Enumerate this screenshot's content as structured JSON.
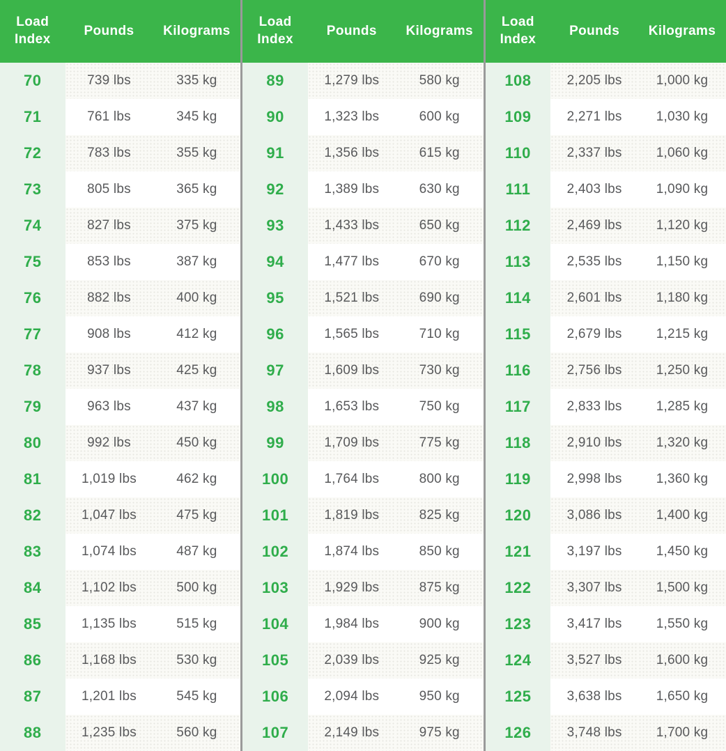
{
  "colors": {
    "header_bg": "#3bb54a",
    "header_text": "#ffffff",
    "index_text_green": "#2fad4b",
    "index_column_bg": "#e9f3eb",
    "stripe_row_bg": "#fafaf6",
    "plain_row_bg": "#ffffff",
    "group_divider": "#9a9a9a",
    "data_text": "#58595b"
  },
  "chart_data": {
    "type": "table",
    "columns": [
      "Load Index",
      "Pounds",
      "Kilograms"
    ],
    "groups": [
      {
        "rows": [
          [
            "70",
            "739 lbs",
            "335 kg"
          ],
          [
            "71",
            "761 lbs",
            "345 kg"
          ],
          [
            "72",
            "783 lbs",
            "355 kg"
          ],
          [
            "73",
            "805 lbs",
            "365 kg"
          ],
          [
            "74",
            "827 lbs",
            "375 kg"
          ],
          [
            "75",
            "853 lbs",
            "387 kg"
          ],
          [
            "76",
            "882 lbs",
            "400 kg"
          ],
          [
            "77",
            "908 lbs",
            "412 kg"
          ],
          [
            "78",
            "937 lbs",
            "425 kg"
          ],
          [
            "79",
            "963 lbs",
            "437 kg"
          ],
          [
            "80",
            "992 lbs",
            "450 kg"
          ],
          [
            "81",
            "1,019 lbs",
            "462 kg"
          ],
          [
            "82",
            "1,047 lbs",
            "475 kg"
          ],
          [
            "83",
            "1,074 lbs",
            "487 kg"
          ],
          [
            "84",
            "1,102 lbs",
            "500 kg"
          ],
          [
            "85",
            "1,135 lbs",
            "515 kg"
          ],
          [
            "86",
            "1,168 lbs",
            "530 kg"
          ],
          [
            "87",
            "1,201 lbs",
            "545 kg"
          ],
          [
            "88",
            "1,235 lbs",
            "560 kg"
          ]
        ]
      },
      {
        "rows": [
          [
            "89",
            "1,279 lbs",
            "580 kg"
          ],
          [
            "90",
            "1,323 lbs",
            "600 kg"
          ],
          [
            "91",
            "1,356 lbs",
            "615 kg"
          ],
          [
            "92",
            "1,389 lbs",
            "630 kg"
          ],
          [
            "93",
            "1,433 lbs",
            "650 kg"
          ],
          [
            "94",
            "1,477 lbs",
            "670 kg"
          ],
          [
            "95",
            "1,521 lbs",
            "690 kg"
          ],
          [
            "96",
            "1,565 lbs",
            "710 kg"
          ],
          [
            "97",
            "1,609 lbs",
            "730 kg"
          ],
          [
            "98",
            "1,653 lbs",
            "750 kg"
          ],
          [
            "99",
            "1,709 lbs",
            "775 kg"
          ],
          [
            "100",
            "1,764 lbs",
            "800 kg"
          ],
          [
            "101",
            "1,819 lbs",
            "825 kg"
          ],
          [
            "102",
            "1,874 lbs",
            "850 kg"
          ],
          [
            "103",
            "1,929 lbs",
            "875 kg"
          ],
          [
            "104",
            "1,984 lbs",
            "900 kg"
          ],
          [
            "105",
            "2,039 lbs",
            "925 kg"
          ],
          [
            "106",
            "2,094 lbs",
            "950 kg"
          ],
          [
            "107",
            "2,149 lbs",
            "975 kg"
          ]
        ]
      },
      {
        "rows": [
          [
            "108",
            "2,205 lbs",
            "1,000 kg"
          ],
          [
            "109",
            "2,271 lbs",
            "1,030 kg"
          ],
          [
            "110",
            "2,337 lbs",
            "1,060 kg"
          ],
          [
            "111",
            "2,403 lbs",
            "1,090 kg"
          ],
          [
            "112",
            "2,469 lbs",
            "1,120 kg"
          ],
          [
            "113",
            "2,535 lbs",
            "1,150 kg"
          ],
          [
            "114",
            "2,601 lbs",
            "1,180 kg"
          ],
          [
            "115",
            "2,679 lbs",
            "1,215 kg"
          ],
          [
            "116",
            "2,756 lbs",
            "1,250 kg"
          ],
          [
            "117",
            "2,833 lbs",
            "1,285 kg"
          ],
          [
            "118",
            "2,910 lbs",
            "1,320 kg"
          ],
          [
            "119",
            "2,998 lbs",
            "1,360 kg"
          ],
          [
            "120",
            "3,086 lbs",
            "1,400 kg"
          ],
          [
            "121",
            "3,197 lbs",
            "1,450 kg"
          ],
          [
            "122",
            "3,307 lbs",
            "1,500 kg"
          ],
          [
            "123",
            "3,417 lbs",
            "1,550 kg"
          ],
          [
            "124",
            "3,527 lbs",
            "1,600 kg"
          ],
          [
            "125",
            "3,638 lbs",
            "1,650 kg"
          ],
          [
            "126",
            "3,748 lbs",
            "1,700 kg"
          ]
        ]
      }
    ]
  }
}
